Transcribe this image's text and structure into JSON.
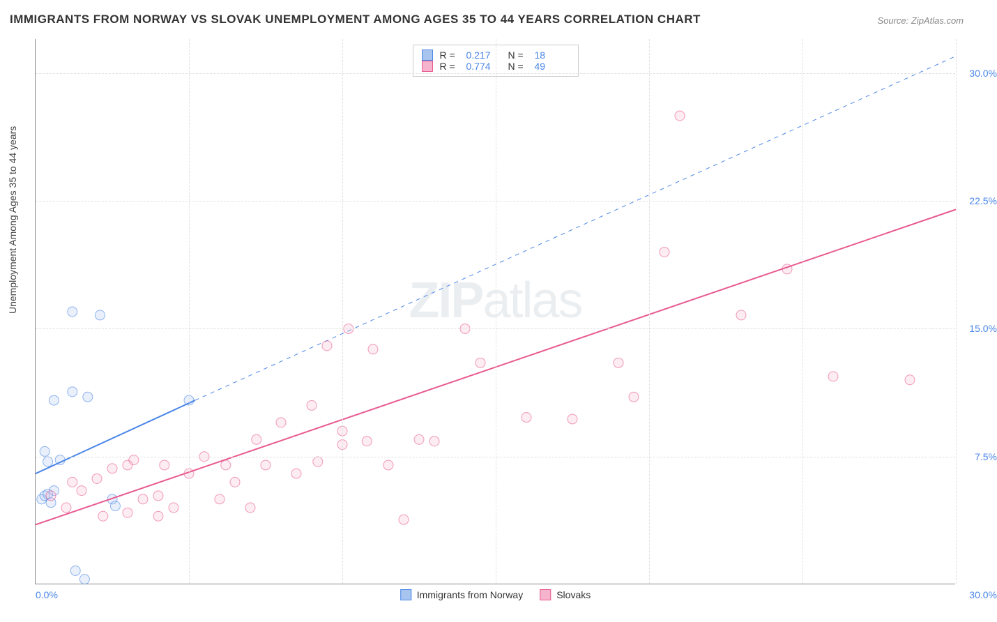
{
  "title": "IMMIGRANTS FROM NORWAY VS SLOVAK UNEMPLOYMENT AMONG AGES 35 TO 44 YEARS CORRELATION CHART",
  "source": "Source: ZipAtlas.com",
  "y_axis_label": "Unemployment Among Ages 35 to 44 years",
  "watermark_a": "ZIP",
  "watermark_b": "atlas",
  "chart": {
    "type": "scatter",
    "xlim": [
      0,
      30
    ],
    "ylim": [
      0,
      32
    ],
    "x_tick_min_label": "0.0%",
    "x_tick_max_label": "30.0%",
    "y_ticks": [
      7.5,
      15.0,
      22.5,
      30.0
    ],
    "y_tick_labels": [
      "7.5%",
      "15.0%",
      "22.5%",
      "30.0%"
    ],
    "x_grid": [
      5,
      10,
      15,
      20,
      25,
      30
    ],
    "background_color": "#ffffff",
    "grid_color": "#e0e0e0",
    "axis_color": "#888888",
    "label_color": "#4a86e8",
    "marker_radius": 7,
    "marker_fill_opacity": 0.25,
    "series": [
      {
        "name": "Immigrants from Norway",
        "color": "#4a86e8",
        "fill": "#a8c5f0",
        "r_value": "0.217",
        "n_value": "18",
        "regression": {
          "x1": 0,
          "y1": 6.5,
          "x2": 5.2,
          "y2": 10.8,
          "dashed_to_x": 30,
          "dashed_to_y": 31.0
        },
        "points": [
          [
            0.2,
            5.0
          ],
          [
            0.3,
            5.2
          ],
          [
            0.4,
            5.3
          ],
          [
            0.5,
            4.8
          ],
          [
            0.4,
            7.2
          ],
          [
            0.8,
            7.3
          ],
          [
            0.3,
            7.8
          ],
          [
            0.6,
            10.8
          ],
          [
            1.2,
            16.0
          ],
          [
            2.1,
            15.8
          ],
          [
            1.2,
            11.3
          ],
          [
            1.7,
            11.0
          ],
          [
            2.5,
            5.0
          ],
          [
            2.6,
            4.6
          ],
          [
            5.0,
            10.8
          ],
          [
            1.3,
            0.8
          ],
          [
            1.6,
            0.3
          ],
          [
            0.6,
            5.5
          ]
        ]
      },
      {
        "name": "Slovaks",
        "color": "#e85a8f",
        "fill": "#f6b3cc",
        "r_value": "0.774",
        "n_value": "49",
        "regression": {
          "x1": 0,
          "y1": 3.5,
          "x2": 30,
          "y2": 22.0
        },
        "points": [
          [
            0.5,
            5.2
          ],
          [
            1.0,
            4.5
          ],
          [
            1.2,
            6.0
          ],
          [
            1.5,
            5.5
          ],
          [
            2.0,
            6.2
          ],
          [
            2.2,
            4.0
          ],
          [
            2.5,
            6.8
          ],
          [
            3.0,
            7.0
          ],
          [
            3.0,
            4.2
          ],
          [
            3.2,
            7.3
          ],
          [
            3.5,
            5.0
          ],
          [
            4.0,
            5.2
          ],
          [
            4.0,
            4.0
          ],
          [
            4.2,
            7.0
          ],
          [
            4.5,
            4.5
          ],
          [
            5.0,
            6.5
          ],
          [
            5.5,
            7.5
          ],
          [
            6.0,
            5.0
          ],
          [
            6.2,
            7.0
          ],
          [
            6.5,
            6.0
          ],
          [
            7.0,
            4.5
          ],
          [
            7.2,
            8.5
          ],
          [
            7.5,
            7.0
          ],
          [
            8.0,
            9.5
          ],
          [
            8.5,
            6.5
          ],
          [
            9.0,
            10.5
          ],
          [
            9.2,
            7.2
          ],
          [
            9.5,
            14.0
          ],
          [
            10.0,
            9.0
          ],
          [
            10.2,
            15.0
          ],
          [
            10.0,
            8.2
          ],
          [
            10.8,
            8.4
          ],
          [
            11.0,
            13.8
          ],
          [
            11.5,
            7.0
          ],
          [
            12.0,
            3.8
          ],
          [
            12.5,
            8.5
          ],
          [
            13.0,
            8.4
          ],
          [
            14.0,
            15.0
          ],
          [
            14.5,
            13.0
          ],
          [
            16.0,
            9.8
          ],
          [
            17.5,
            9.7
          ],
          [
            19.0,
            13.0
          ],
          [
            19.5,
            11.0
          ],
          [
            20.5,
            19.5
          ],
          [
            21.0,
            27.5
          ],
          [
            23.0,
            15.8
          ],
          [
            24.5,
            18.5
          ],
          [
            26.0,
            12.2
          ],
          [
            28.5,
            12.0
          ]
        ]
      }
    ],
    "legend_bottom": [
      {
        "label": "Immigrants from Norway",
        "color": "#4a86e8",
        "fill": "#a8c5f0"
      },
      {
        "label": "Slovaks",
        "color": "#e85a8f",
        "fill": "#f6b3cc"
      }
    ]
  }
}
